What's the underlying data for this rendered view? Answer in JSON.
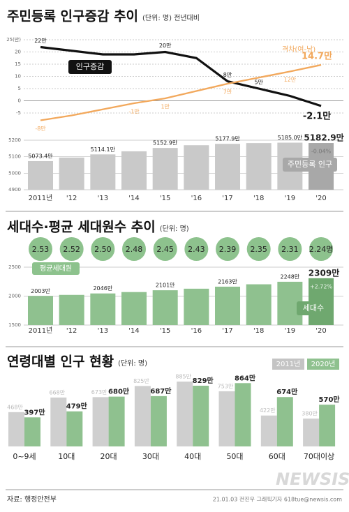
{
  "chart_data": [
    {
      "type": "line",
      "title": "주민등록 인구증감 추이",
      "subtitle": "(단위: 명) 전년대비",
      "ylim": [
        -10,
        25
      ],
      "yticks": [
        {
          "value": 25,
          "label": "25(만)"
        },
        20,
        15,
        10,
        5,
        0,
        -5
      ],
      "grid": true,
      "series": [
        {
          "name": "인구증감",
          "color": "#111111",
          "values": [
            22,
            20.5,
            19,
            19,
            20,
            17.5,
            8,
            5,
            2,
            -2.1
          ],
          "value_labels": [
            "22만",
            null,
            null,
            null,
            "20만",
            null,
            "8만",
            "5만",
            null,
            "-2.1만"
          ]
        },
        {
          "name": "격차(여-남)",
          "color": "#f2a85c",
          "values": [
            -8,
            -6,
            -3.5,
            -1,
            1,
            4,
            7,
            9.5,
            12,
            14.7
          ],
          "value_labels": [
            "-8만",
            null,
            null,
            "-1만",
            "1만",
            null,
            "7만",
            null,
            "12만",
            "14.7만"
          ]
        }
      ]
    },
    {
      "type": "bar",
      "categories": [
        "2011년",
        "'12",
        "'13",
        "'14",
        "'15",
        "'16",
        "'17",
        "'18",
        "'19",
        "'20"
      ],
      "ylim": [
        4900,
        5200
      ],
      "yticks": [
        5200,
        5100,
        5000,
        4900
      ],
      "grid": true,
      "annotation": "-0.04%",
      "series": [
        {
          "name": "주민등록 인구",
          "color": "#c9c9c9",
          "values": [
            5073.4,
            5095,
            5114.1,
            5132.8,
            5152.9,
            5169.6,
            5177.9,
            5182.6,
            5185.0,
            5182.9
          ],
          "value_labels": [
            "5073.4만",
            null,
            "5114.1만",
            null,
            "5152.9만",
            null,
            "5177.9만",
            null,
            "5185.0만",
            "5182.9만"
          ]
        }
      ]
    },
    {
      "type": "bar",
      "title": "세대수·평균 세대원수 추이",
      "subtitle": "(단위: 명)",
      "categories": [
        "2011년",
        "'12",
        "'13",
        "'14",
        "'15",
        "'16",
        "'17",
        "'18",
        "'19",
        "'20"
      ],
      "ylim": [
        1500,
        2500
      ],
      "yticks": [
        2500,
        2000,
        1500
      ],
      "grid": true,
      "annotation": "+2.72%",
      "markers": {
        "name": "평균세대원",
        "color": "#8dc28d",
        "values": [
          2.53,
          2.52,
          2.5,
          2.48,
          2.45,
          2.43,
          2.39,
          2.35,
          2.31,
          2.24
        ],
        "value_labels": [
          "2.53",
          "2.52",
          "2.50",
          "2.48",
          "2.45",
          "2.43",
          "2.39",
          "2.35",
          "2.31",
          "2.24명"
        ]
      },
      "series": [
        {
          "name": "세대수",
          "color": "#8fc18f",
          "values": [
            2003,
            2021,
            2046,
            2070,
            2101,
            2128,
            2163,
            2204,
            2248,
            2309
          ],
          "value_labels": [
            "2003만",
            null,
            "2046만",
            null,
            "2101만",
            null,
            "2163만",
            null,
            "2248만",
            "2309만"
          ]
        }
      ]
    },
    {
      "type": "grouped_bar",
      "title": "연령대별 인구 현황",
      "subtitle": "(단위: 명)",
      "categories": [
        "0~9세",
        "10대",
        "20대",
        "30대",
        "40대",
        "50대",
        "60대",
        "70대이상"
      ],
      "series": [
        {
          "name": "2011년",
          "color": "#cfcfcf",
          "values": [
            468,
            668,
            673,
            825,
            885,
            753,
            422,
            380
          ],
          "value_labels": [
            "468만",
            "668만",
            "673만",
            "825만",
            "885만",
            "753만",
            "422만",
            "380만"
          ]
        },
        {
          "name": "2020년",
          "color": "#8fc18f",
          "values": [
            397,
            479,
            680,
            687,
            829,
            864,
            674,
            570
          ],
          "value_labels": [
            "397만",
            "479만",
            "680만",
            "687만",
            "829만",
            "864만",
            "674만",
            "570만"
          ]
        }
      ]
    }
  ],
  "footer": {
    "source": "자료: 행정안전부",
    "credit": "21.01.03 전진우 그래픽기자 618tue@newsis.com",
    "watermark": "NEWSIS"
  }
}
